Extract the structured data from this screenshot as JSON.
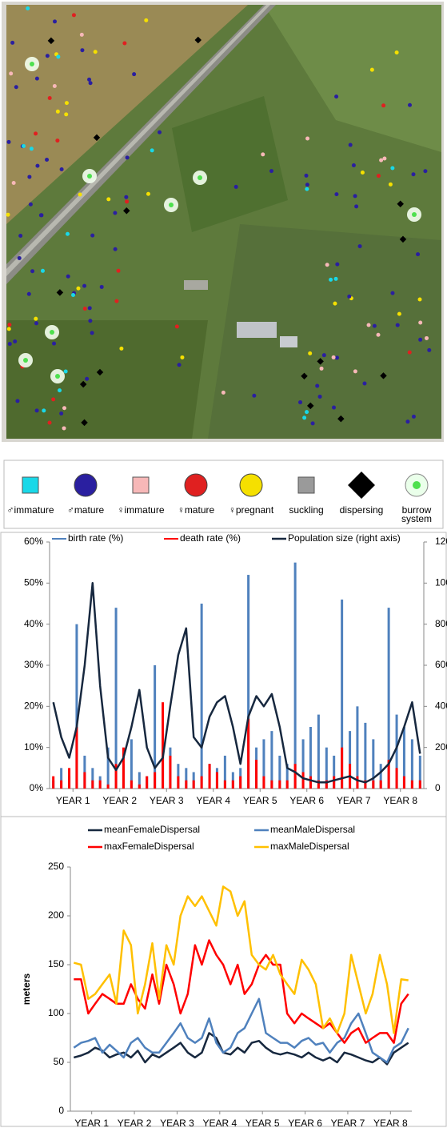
{
  "legend": {
    "items": [
      {
        "label": "♂immature",
        "color": "#19d8e8",
        "shape": "square"
      },
      {
        "label": "♂mature",
        "color": "#2a1fa0",
        "shape": "circle"
      },
      {
        "label": "♀immature",
        "color": "#f7b8b8",
        "shape": "square"
      },
      {
        "label": "♀mature",
        "color": "#e02020",
        "shape": "circle"
      },
      {
        "label": "♀pregnant",
        "color": "#f5e000",
        "shape": "circle"
      },
      {
        "label": "suckling",
        "color": "#9a9a9a",
        "shape": "square"
      },
      {
        "label": "dispersing",
        "color": "#000000",
        "shape": "diamond"
      },
      {
        "label": "burrow system",
        "color": "#4ee04e",
        "shape": "glow"
      }
    ]
  },
  "chart_data": [
    {
      "type": "combo",
      "x": [
        0.08,
        0.25,
        0.42,
        0.58,
        0.75,
        0.92,
        1.08,
        1.25,
        1.42,
        1.58,
        1.75,
        1.92,
        2.08,
        2.25,
        2.42,
        2.58,
        2.75,
        2.92,
        3.08,
        3.25,
        3.42,
        3.58,
        3.75,
        3.92,
        4.08,
        4.25,
        4.42,
        4.58,
        4.75,
        4.92,
        5.08,
        5.25,
        5.42,
        5.58,
        5.75,
        5.92,
        6.08,
        6.25,
        6.42,
        6.58,
        6.75,
        6.92,
        7.08,
        7.25,
        7.42,
        7.58,
        7.75,
        7.92
      ],
      "xlim": [
        0,
        8
      ],
      "xticks": [
        {
          "value": 0.5,
          "label": "YEAR 1"
        },
        {
          "value": 1.5,
          "label": "YEAR 2"
        },
        {
          "value": 2.5,
          "label": "YEAR 3"
        },
        {
          "value": 3.5,
          "label": "YEAR 4"
        },
        {
          "value": 4.5,
          "label": "YEAR 5"
        },
        {
          "value": 5.5,
          "label": "YEAR 6"
        },
        {
          "value": 6.5,
          "label": "YEAR 7"
        },
        {
          "value": 7.5,
          "label": "YEAR 8"
        }
      ],
      "ylim": [
        0,
        60
      ],
      "yticks": [
        {
          "value": 0,
          "label": "0%"
        },
        {
          "value": 10,
          "label": "10%"
        },
        {
          "value": 20,
          "label": "20%"
        },
        {
          "value": 30,
          "label": "30%"
        },
        {
          "value": 40,
          "label": "40%"
        },
        {
          "value": 50,
          "label": "50%"
        },
        {
          "value": 60,
          "label": "60%"
        }
      ],
      "y2lim": [
        0,
        1200
      ],
      "y2ticks": [
        0,
        200,
        400,
        600,
        800,
        1000,
        1200
      ],
      "series": [
        {
          "name": "birth rate (%)",
          "type": "bar",
          "color": "#4f81bd",
          "values": [
            2,
            5,
            3,
            40,
            8,
            5,
            3,
            10,
            44,
            6,
            12,
            4,
            3,
            30,
            8,
            10,
            6,
            5,
            4,
            45,
            6,
            5,
            8,
            4,
            5,
            52,
            10,
            12,
            14,
            8,
            6,
            55,
            12,
            15,
            18,
            10,
            8,
            46,
            14,
            20,
            16,
            12,
            6,
            44,
            18,
            15,
            12,
            8
          ]
        },
        {
          "name": "death rate (%)",
          "type": "bar",
          "color": "#ff0000",
          "values": [
            3,
            2,
            5,
            15,
            4,
            2,
            2,
            1,
            6,
            10,
            2,
            1,
            3,
            4,
            21,
            8,
            3,
            2,
            2,
            3,
            6,
            4,
            2,
            2,
            3,
            17,
            7,
            3,
            2,
            2,
            2,
            6,
            4,
            3,
            2,
            2,
            3,
            10,
            6,
            3,
            2,
            2,
            2,
            7,
            5,
            3,
            2,
            2
          ]
        },
        {
          "name": "Population size (right axis)",
          "type": "line",
          "axis": "y2",
          "color": "#17283f",
          "values": [
            420,
            250,
            150,
            300,
            600,
            1000,
            500,
            150,
            90,
            150,
            300,
            480,
            200,
            100,
            150,
            400,
            650,
            780,
            250,
            200,
            350,
            420,
            450,
            300,
            120,
            350,
            450,
            400,
            460,
            300,
            100,
            80,
            50,
            40,
            30,
            30,
            40,
            50,
            60,
            40,
            30,
            50,
            80,
            120,
            200,
            300,
            420,
            170
          ]
        }
      ]
    },
    {
      "type": "line",
      "ylabel": "meters",
      "x": [
        0.08,
        0.25,
        0.42,
        0.58,
        0.75,
        0.92,
        1.08,
        1.25,
        1.42,
        1.58,
        1.75,
        1.92,
        2.08,
        2.25,
        2.42,
        2.58,
        2.75,
        2.92,
        3.08,
        3.25,
        3.42,
        3.58,
        3.75,
        3.92,
        4.08,
        4.25,
        4.42,
        4.58,
        4.75,
        4.92,
        5.08,
        5.25,
        5.42,
        5.58,
        5.75,
        5.92,
        6.08,
        6.25,
        6.42,
        6.58,
        6.75,
        6.92,
        7.08,
        7.25,
        7.42,
        7.58,
        7.75,
        7.92
      ],
      "xlim": [
        0,
        8
      ],
      "xticks": [
        {
          "value": 0.5,
          "label": "YEAR 1"
        },
        {
          "value": 1.5,
          "label": "YEAR 2"
        },
        {
          "value": 2.5,
          "label": "YEAR 3"
        },
        {
          "value": 3.5,
          "label": "YEAR 4"
        },
        {
          "value": 4.5,
          "label": "YEAR 5"
        },
        {
          "value": 5.5,
          "label": "YEAR 6"
        },
        {
          "value": 6.5,
          "label": "YEAR 7"
        },
        {
          "value": 7.5,
          "label": "YEAR 8"
        }
      ],
      "ylim": [
        0,
        250
      ],
      "yticks": [
        0,
        50,
        100,
        150,
        200,
        250
      ],
      "series": [
        {
          "name": "meanFemaleDispersal",
          "color": "#17283f",
          "values": [
            55,
            57,
            60,
            65,
            62,
            55,
            58,
            60,
            55,
            62,
            50,
            58,
            55,
            60,
            65,
            70,
            60,
            55,
            60,
            80,
            75,
            60,
            58,
            65,
            60,
            70,
            72,
            65,
            60,
            58,
            60,
            58,
            55,
            60,
            55,
            52,
            55,
            50,
            60,
            58,
            55,
            52,
            50,
            55,
            48,
            60,
            65,
            70
          ]
        },
        {
          "name": "meanMaleDispersal",
          "color": "#4f81bd",
          "values": [
            65,
            70,
            72,
            75,
            60,
            68,
            62,
            55,
            70,
            75,
            65,
            60,
            60,
            70,
            80,
            90,
            75,
            70,
            75,
            95,
            70,
            60,
            65,
            80,
            85,
            100,
            115,
            80,
            75,
            70,
            70,
            65,
            72,
            75,
            68,
            70,
            60,
            70,
            75,
            90,
            100,
            80,
            60,
            55,
            50,
            65,
            70,
            85
          ]
        },
        {
          "name": "maxFemaleDispersal",
          "color": "#ff0000",
          "values": [
            135,
            135,
            100,
            110,
            120,
            115,
            110,
            110,
            130,
            115,
            105,
            140,
            110,
            150,
            130,
            100,
            120,
            170,
            150,
            175,
            160,
            150,
            130,
            150,
            120,
            130,
            150,
            160,
            150,
            150,
            100,
            90,
            100,
            95,
            90,
            85,
            90,
            80,
            70,
            80,
            85,
            70,
            75,
            80,
            80,
            70,
            110,
            120
          ]
        },
        {
          "name": "maxMaleDispersal",
          "color": "#ffc000",
          "values": [
            152,
            150,
            115,
            120,
            130,
            140,
            110,
            185,
            170,
            100,
            130,
            172,
            115,
            170,
            150,
            200,
            220,
            210,
            220,
            205,
            190,
            230,
            225,
            200,
            215,
            160,
            150,
            145,
            160,
            140,
            130,
            120,
            155,
            145,
            130,
            85,
            95,
            80,
            100,
            160,
            130,
            100,
            120,
            160,
            130,
            80,
            135,
            134
          ]
        }
      ]
    }
  ]
}
